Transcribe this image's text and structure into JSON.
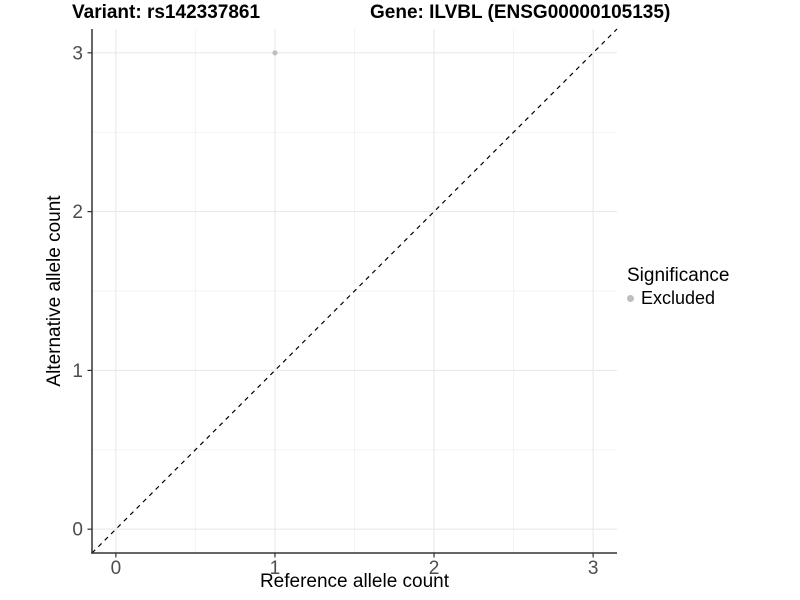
{
  "titles": {
    "variant": "Variant: rs142337861",
    "gene": "Gene: ILVBL (ENSG00000105135)"
  },
  "legend": {
    "title": "Significance",
    "items": [
      {
        "label": "Excluded",
        "color": "#bebebe",
        "marker": "circle"
      }
    ]
  },
  "chart_data": {
    "type": "scatter",
    "xlabel": "Reference allele count",
    "ylabel": "Alternative allele count",
    "xlim": [
      -0.15,
      3.15
    ],
    "ylim": [
      -0.15,
      3.15
    ],
    "xticks": [
      0,
      1,
      2,
      3
    ],
    "yticks": [
      0,
      1,
      2,
      3
    ],
    "xtick_labels": [
      "0",
      "1",
      "2",
      "3"
    ],
    "ytick_labels": [
      "0",
      "1",
      "2",
      "3"
    ],
    "xminor": [
      0.5,
      1.5,
      2.5
    ],
    "yminor": [
      0.5,
      1.5,
      2.5
    ],
    "grid": "major+minor",
    "legend_position": "right",
    "series": [
      {
        "name": "Excluded",
        "color": "#bebebe",
        "points": [
          {
            "x": 1,
            "y": 3
          }
        ]
      }
    ],
    "reference_line": {
      "type": "abline",
      "slope": 1,
      "intercept": 0,
      "style": "dashed",
      "color": "#000000"
    }
  },
  "style": {
    "major_grid_color": "#e7e7e7",
    "minor_grid_color": "#f3f3f3",
    "axis_color": "#333333",
    "tick_label_color": "#4d4d4d",
    "background_color": "#ffffff",
    "point_color": "#bebebe"
  }
}
